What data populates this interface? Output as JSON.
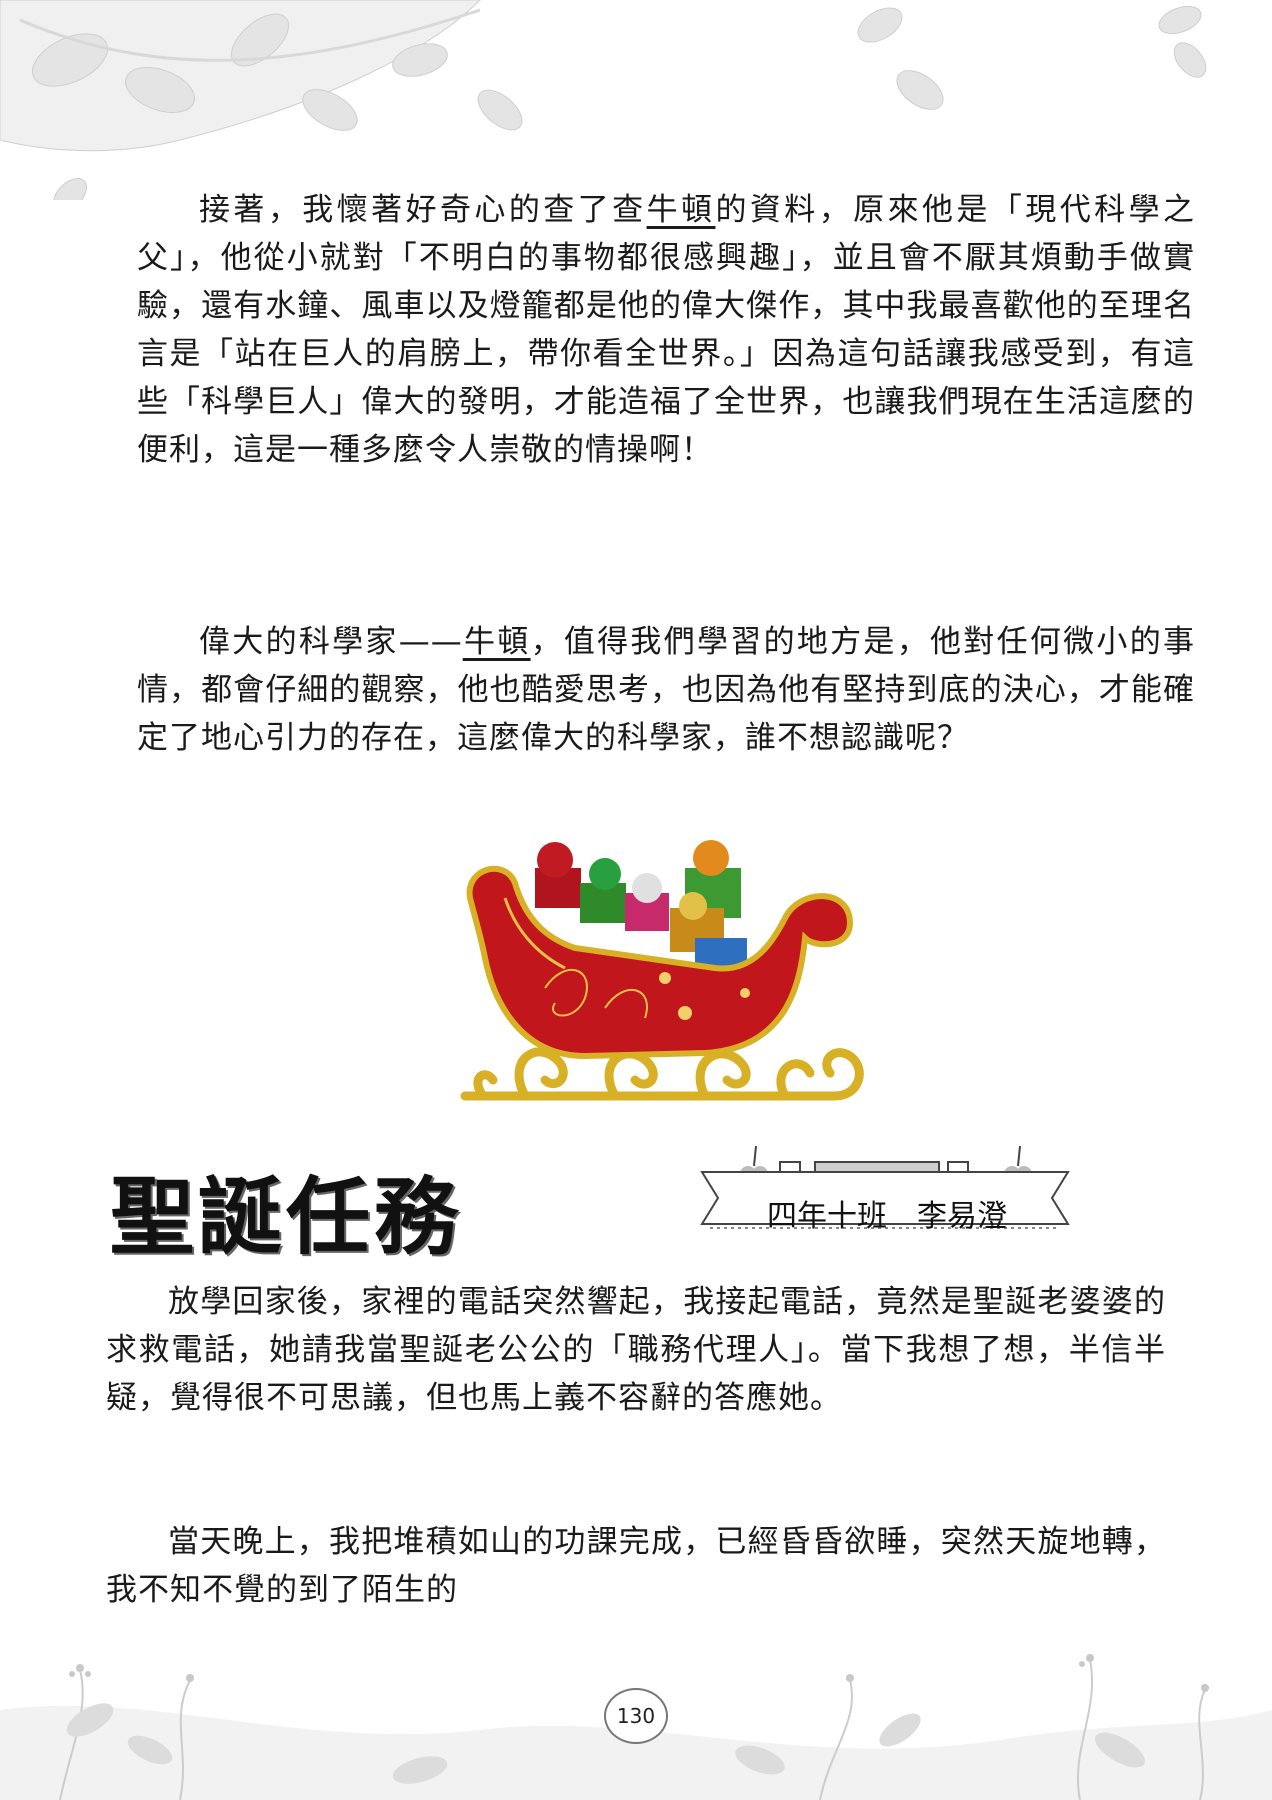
{
  "section1": {
    "paragraph1": {
      "before_name": "接著，我懷著好奇心的查了查",
      "name": "牛頓",
      "after_name": "的資料，原來他是「現代科學之父」，他從小就對「不明白的事物都很感興趣」，並且會不厭其煩動手做實驗，還有水鐘、風車以及燈籠都是他的偉大傑作，其中我最喜歡他的至理名言是「站在巨人的肩膀上，帶你看全世界。」因為這句話讓我感受到，有這些「科學巨人」偉大的發明，才能造福了全世界，也讓我們現在生活這麼的便利，這是一種多麼令人崇敬的情操啊！"
    },
    "paragraph2": {
      "before_name": "偉大的科學家——",
      "name": "牛頓",
      "after_name": "，值得我們學習的地方是，他對任何微小的事情，都會仔細的觀察，他也酷愛思考，也因為他有堅持到底的決心，才能確定了地心引力的存在，這麼偉大的科學家，誰不想認識呢？"
    }
  },
  "article": {
    "title": "聖誕任務",
    "author": "四年十班　李易澄",
    "paragraph1": "放學回家後，家裡的電話突然響起，我接起電話，竟然是聖誕老婆婆的求救電話，她請我當聖誕老公公的「職務代理人」。當下我想了想，半信半疑，覺得很不可思議，但也馬上義不容辭的答應她。",
    "paragraph2": "當天晚上，我把堆積如山的功課完成，已經昏昏欲睡，突然天旋地轉，我不知不覺的到了陌生的"
  },
  "page_number": "130",
  "colors": {
    "sleigh_red": "#c0161c",
    "sleigh_gold": "#d8b026",
    "text": "#1a1a1a"
  }
}
